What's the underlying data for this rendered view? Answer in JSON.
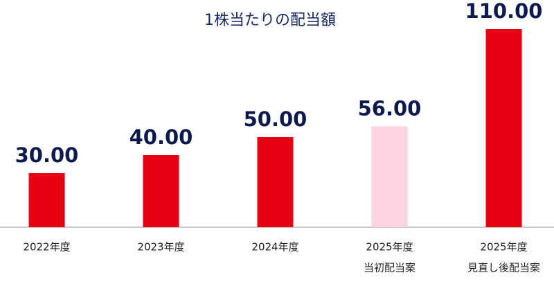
{
  "chart_data": {
    "type": "bar",
    "title": "1株当たりの配当額",
    "categories": [
      [
        "2022年度"
      ],
      [
        "2023年度"
      ],
      [
        "2024年度"
      ],
      [
        "2025年度",
        "当初配当案"
      ],
      [
        "2025年度",
        "見直し後配当案"
      ]
    ],
    "values": [
      30,
      40,
      50,
      56,
      110
    ],
    "value_labels": [
      "30.00",
      "40.00",
      "50.00",
      "56.00",
      "110.00"
    ],
    "colors": [
      "#e60012",
      "#e60012",
      "#e60012",
      "#fcd3e1",
      "#e60012"
    ],
    "ylim": [
      0,
      120
    ]
  }
}
